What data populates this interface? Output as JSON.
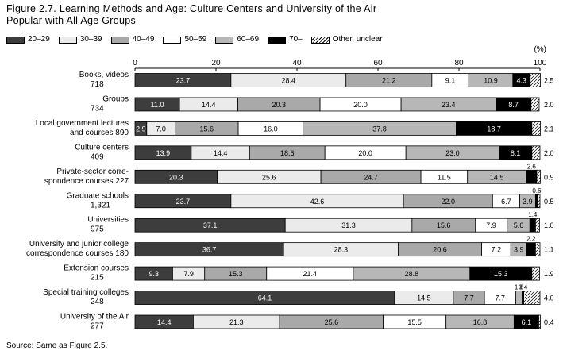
{
  "figure": {
    "title_line1": "Figure 2.7. Learning Methods and Age: Culture Centers and University of the Air",
    "title_line2": "Popular with All Age Groups",
    "source": "Source: Same as Figure 2.5."
  },
  "chart_data": {
    "type": "bar",
    "orientation": "horizontal",
    "stacked": true,
    "unit_label": "(%)",
    "xlim": [
      0,
      100
    ],
    "x_ticks": [
      "0",
      "20",
      "40",
      "60",
      "80",
      "100"
    ],
    "legend_position": "top",
    "grid": false,
    "categories": [
      {
        "label_lines": [
          "Books, videos"
        ],
        "count": "718"
      },
      {
        "label_lines": [
          "Groups"
        ],
        "count": "734"
      },
      {
        "label_lines": [
          "Local government lectures"
        ],
        "label_last": "and courses",
        "count": "890"
      },
      {
        "label_lines": [
          "Culture centers"
        ],
        "count": "409"
      },
      {
        "label_lines": [
          "Private-sector corre-"
        ],
        "label_last": "spondence courses",
        "count": "227"
      },
      {
        "label_lines": [
          "Graduate schools"
        ],
        "count": "1,321"
      },
      {
        "label_lines": [
          "Universities"
        ],
        "count": "975"
      },
      {
        "label_lines": [
          "University and junior college"
        ],
        "label_last": "correspondence courses",
        "count": "180"
      },
      {
        "label_lines": [
          "Extension courses"
        ],
        "count": "215"
      },
      {
        "label_lines": [
          "Special training colleges"
        ],
        "count": "248"
      },
      {
        "label_lines": [
          "University of the Air"
        ],
        "count": "277"
      }
    ],
    "series": [
      {
        "name": "20–29",
        "color": "#3d3d3d",
        "text_color": "#ffffff",
        "values": [
          23.7,
          11.0,
          2.9,
          13.9,
          20.3,
          23.7,
          37.1,
          36.7,
          9.3,
          64.1,
          14.4
        ]
      },
      {
        "name": "30–39",
        "color": "#ebebeb",
        "text_color": "#000000",
        "values": [
          28.4,
          14.4,
          7.0,
          14.4,
          25.6,
          42.6,
          31.3,
          28.3,
          7.9,
          14.5,
          21.3
        ]
      },
      {
        "name": "40–49",
        "color": "#a9a9a9",
        "text_color": "#000000",
        "values": [
          21.2,
          20.3,
          15.6,
          18.6,
          24.7,
          22.0,
          15.6,
          20.6,
          15.3,
          7.7,
          25.6
        ]
      },
      {
        "name": "50–59",
        "color": "#ffffff",
        "text_color": "#000000",
        "values": [
          9.1,
          20.0,
          16.0,
          20.0,
          11.5,
          6.7,
          7.9,
          7.2,
          21.4,
          7.7,
          15.5
        ]
      },
      {
        "name": "60–69",
        "color": "#b7b7b7",
        "text_color": "#000000",
        "values": [
          10.9,
          23.4,
          37.8,
          23.0,
          14.5,
          3.9,
          5.6,
          3.9,
          28.8,
          1.6,
          16.8
        ]
      },
      {
        "name": "70–",
        "color": "#000000",
        "text_color": "#ffffff",
        "values": [
          4.3,
          8.7,
          18.7,
          8.1,
          2.6,
          0.6,
          1.4,
          2.2,
          15.3,
          0.4,
          6.1
        ]
      },
      {
        "name": "Other, unclear",
        "color": "hatch",
        "text_color": "#000000",
        "values": [
          2.5,
          2.0,
          2.1,
          2.0,
          0.9,
          0.5,
          1.0,
          1.1,
          1.9,
          4.0,
          0.4
        ]
      }
    ]
  }
}
